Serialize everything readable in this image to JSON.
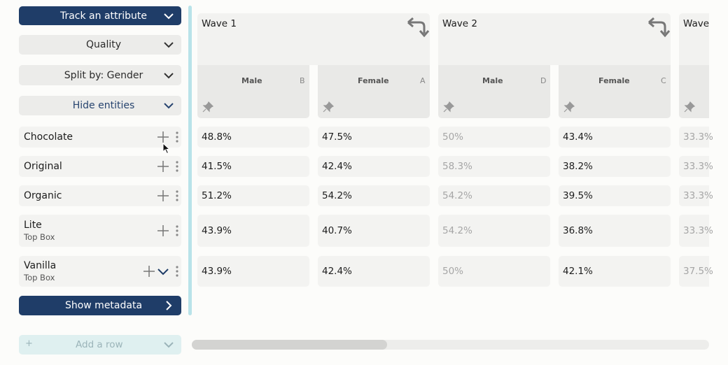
{
  "controls": {
    "track_attribute": "Track an attribute",
    "quality": "Quality",
    "split_by": "Split by: Gender",
    "hide_entities": "Hide entities",
    "show_metadata": "Show metadata",
    "add_row": "Add a row",
    "add_row_symbol": "+"
  },
  "rows": [
    {
      "name": "Chocolate",
      "sub": ""
    },
    {
      "name": "Original",
      "sub": ""
    },
    {
      "name": "Organic",
      "sub": ""
    },
    {
      "name": "Lite",
      "sub": "Top Box"
    },
    {
      "name": "Vanilla",
      "sub": "Top Box"
    }
  ],
  "waves": [
    {
      "title": "Wave 1",
      "cols": [
        {
          "label": "Male",
          "letter": "B"
        },
        {
          "label": "Female",
          "letter": "A"
        }
      ]
    },
    {
      "title": "Wave 2",
      "cols": [
        {
          "label": "Male",
          "letter": "D"
        },
        {
          "label": "Female",
          "letter": "C"
        }
      ]
    },
    {
      "title": "Wave",
      "cols": []
    }
  ],
  "values": [
    [
      "48.8%",
      "47.5%",
      "50%",
      "43.4%",
      "33.3%"
    ],
    [
      "41.5%",
      "42.4%",
      "58.3%",
      "38.2%",
      "33.3%"
    ],
    [
      "51.2%",
      "54.2%",
      "54.2%",
      "39.5%",
      "33.3%"
    ],
    [
      "43.9%",
      "40.7%",
      "54.2%",
      "36.8%",
      "33.3%"
    ],
    [
      "43.9%",
      "42.4%",
      "50%",
      "42.1%",
      "37.5%"
    ]
  ],
  "colors": {
    "accent_dark": "#1f3d68",
    "divider": "#b9e3e9",
    "dim_text": "#a6a6a6"
  }
}
